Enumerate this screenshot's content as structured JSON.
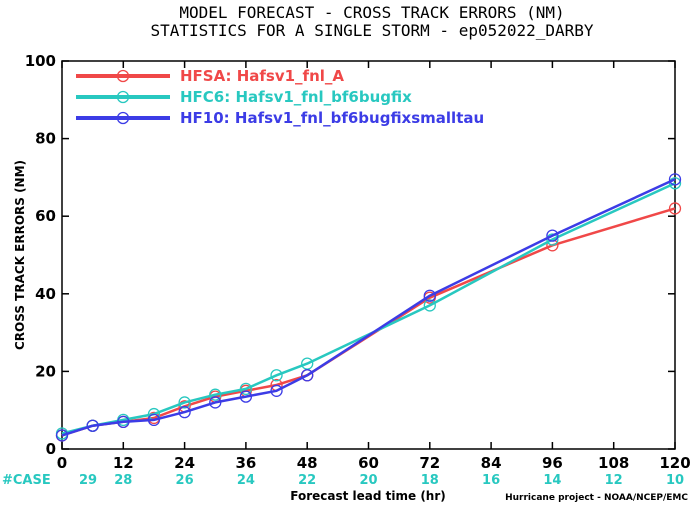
{
  "chart_data": {
    "type": "line",
    "title": "MODEL FORECAST - CROSS TRACK ERRORS (NM)",
    "subtitle": "STATISTICS FOR A SINGLE STORM - ep052022_DARBY",
    "xlabel": "Forecast lead time (hr)",
    "ylabel": "CROSS TRACK ERRORS (NM)",
    "xlim": [
      0,
      120
    ],
    "ylim": [
      0,
      100
    ],
    "x_ticks": [
      0,
      12,
      24,
      36,
      48,
      60,
      72,
      84,
      96,
      108,
      120
    ],
    "y_ticks": [
      0,
      20,
      40,
      60,
      80,
      100
    ],
    "legend_position": "top-left",
    "series": [
      {
        "name": "HFSA: Hafsv1_fnl_A",
        "color": "#f04848",
        "x": [
          0,
          6,
          12,
          18,
          24,
          30,
          36,
          42,
          48,
          72,
          96,
          120
        ],
        "y": [
          3.5,
          6,
          7,
          8,
          11,
          13.5,
          15,
          16.5,
          19,
          39,
          52.5,
          62
        ]
      },
      {
        "name": "HFC6: Hafsv1_fnl_bf6bugfix",
        "color": "#28c8c0",
        "x": [
          0,
          6,
          12,
          18,
          24,
          30,
          36,
          42,
          48,
          72,
          96,
          120
        ],
        "y": [
          4,
          6,
          7.5,
          9,
          12,
          14,
          15.5,
          19,
          22,
          37,
          54,
          68.5
        ]
      },
      {
        "name": "HF10: Hafsv1_fnl_bf6bugfixsmalltau",
        "color": "#3c3ce6",
        "x": [
          0,
          6,
          12,
          18,
          24,
          30,
          36,
          42,
          48,
          72,
          96,
          120
        ],
        "y": [
          3.5,
          6,
          7,
          7.5,
          9.5,
          12,
          13.5,
          15,
          19,
          39.5,
          55,
          69.5
        ]
      }
    ],
    "case_counts": {
      "label": "#CASE",
      "color": "#28c8c0",
      "x": [
        0,
        12,
        24,
        36,
        48,
        60,
        72,
        84,
        96,
        108,
        120
      ],
      "values": [
        29,
        28,
        26,
        24,
        22,
        20,
        18,
        16,
        14,
        12,
        10
      ]
    },
    "credit": "Hurricane project - NOAA/NCEP/EMC"
  }
}
